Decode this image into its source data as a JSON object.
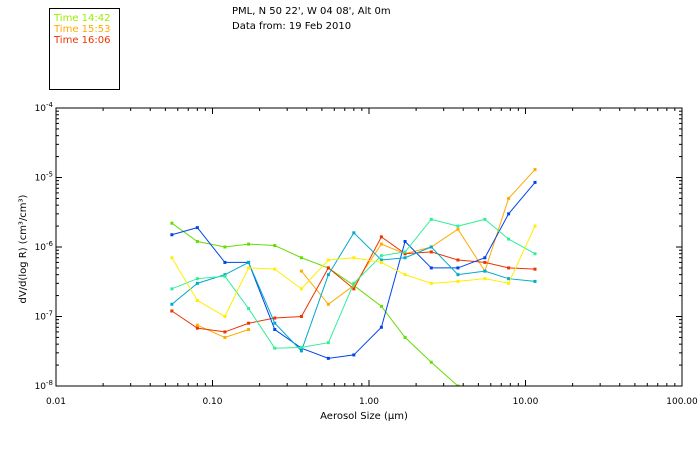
{
  "header": {
    "location": "PML, N 50 22', W 04 08', Alt 0m",
    "date": "Data from: 19 Feb 2010"
  },
  "legend": [
    {
      "label": "Time 14:42",
      "color": "#99ee00"
    },
    {
      "label": "Time 15:53",
      "color": "#ffaa00"
    },
    {
      "label": "Time 16:06",
      "color": "#ee3300"
    }
  ],
  "chart_data": {
    "type": "line",
    "xlabel": "Aerosol Size (μm)",
    "ylabel": "dV/d(log R) (cm³/cm³)",
    "xscale": "log",
    "yscale": "log",
    "xlim": [
      0.01,
      100
    ],
    "ylim": [
      1e-08,
      0.0001
    ],
    "xticks": [
      {
        "value": 0.01,
        "label": "0.01"
      },
      {
        "value": 0.1,
        "label": "0.10"
      },
      {
        "value": 1,
        "label": "1.00"
      },
      {
        "value": 10,
        "label": "10.00"
      },
      {
        "value": 100,
        "label": "100.00"
      }
    ],
    "yticks": [
      {
        "value": 1e-08,
        "base": "10",
        "exp": "-8"
      },
      {
        "value": 1e-07,
        "base": "10",
        "exp": "-7"
      },
      {
        "value": 1e-06,
        "base": "10",
        "exp": "-6"
      },
      {
        "value": 1e-05,
        "base": "10",
        "exp": "-5"
      },
      {
        "value": 0.0001,
        "base": "10",
        "exp": "-4"
      }
    ],
    "x": [
      0.055,
      0.08,
      0.12,
      0.17,
      0.25,
      0.37,
      0.55,
      0.8,
      1.2,
      1.7,
      2.5,
      3.7,
      5.5,
      7.8,
      11.5
    ],
    "series": [
      {
        "color": "#66dd00",
        "values": [
          2.2e-06,
          1.2e-06,
          1e-06,
          1.1e-06,
          1.05e-06,
          7e-07,
          5e-07,
          2.8e-07,
          1.4e-07,
          5e-08,
          2.2e-08,
          1e-08,
          null,
          null,
          null
        ]
      },
      {
        "color": "#ffaa00",
        "values": [
          null,
          7.5e-08,
          5e-08,
          6.5e-08,
          null,
          4.5e-07,
          1.5e-07,
          2.8e-07,
          1.1e-06,
          8e-07,
          1e-06,
          1.8e-06,
          4.5e-07,
          5e-06,
          1.3e-05
        ]
      },
      {
        "color": "#ee3300",
        "values": [
          1.2e-07,
          6.8e-08,
          6e-08,
          8e-08,
          9.5e-08,
          1e-07,
          5e-07,
          2.5e-07,
          1.4e-06,
          8e-07,
          8.5e-07,
          6.5e-07,
          6e-07,
          5e-07,
          4.8e-07
        ]
      },
      {
        "color": "#0044ee",
        "values": [
          1.5e-06,
          1.9e-06,
          6e-07,
          6e-07,
          6.5e-08,
          3.5e-08,
          2.5e-08,
          2.8e-08,
          7e-08,
          1.2e-06,
          5e-07,
          5e-07,
          7e-07,
          3e-06,
          8.5e-06
        ]
      },
      {
        "color": "#00aacc",
        "values": [
          1.5e-07,
          3e-07,
          4e-07,
          6e-07,
          8e-08,
          3.2e-08,
          4e-07,
          1.6e-06,
          6.5e-07,
          7e-07,
          1e-06,
          4e-07,
          4.5e-07,
          3.5e-07,
          3.2e-07
        ]
      },
      {
        "color": "#33ee99",
        "values": [
          2.5e-07,
          3.5e-07,
          3.8e-07,
          1.3e-07,
          3.5e-08,
          3.6e-08,
          4.2e-08,
          3e-07,
          7.5e-07,
          8.5e-07,
          2.5e-06,
          2e-06,
          2.5e-06,
          1.3e-06,
          8e-07
        ]
      },
      {
        "color": "#ffee00",
        "values": [
          7e-07,
          1.7e-07,
          1e-07,
          5e-07,
          4.8e-07,
          2.5e-07,
          6.5e-07,
          7e-07,
          6e-07,
          4e-07,
          3e-07,
          3.2e-07,
          3.5e-07,
          3e-07,
          2e-06
        ]
      },
      {
        "color": "#1166ff",
        "values": [
          null,
          null,
          null,
          null,
          null,
          null,
          null,
          null,
          null,
          null,
          null,
          null,
          null,
          null,
          null
        ]
      }
    ]
  }
}
